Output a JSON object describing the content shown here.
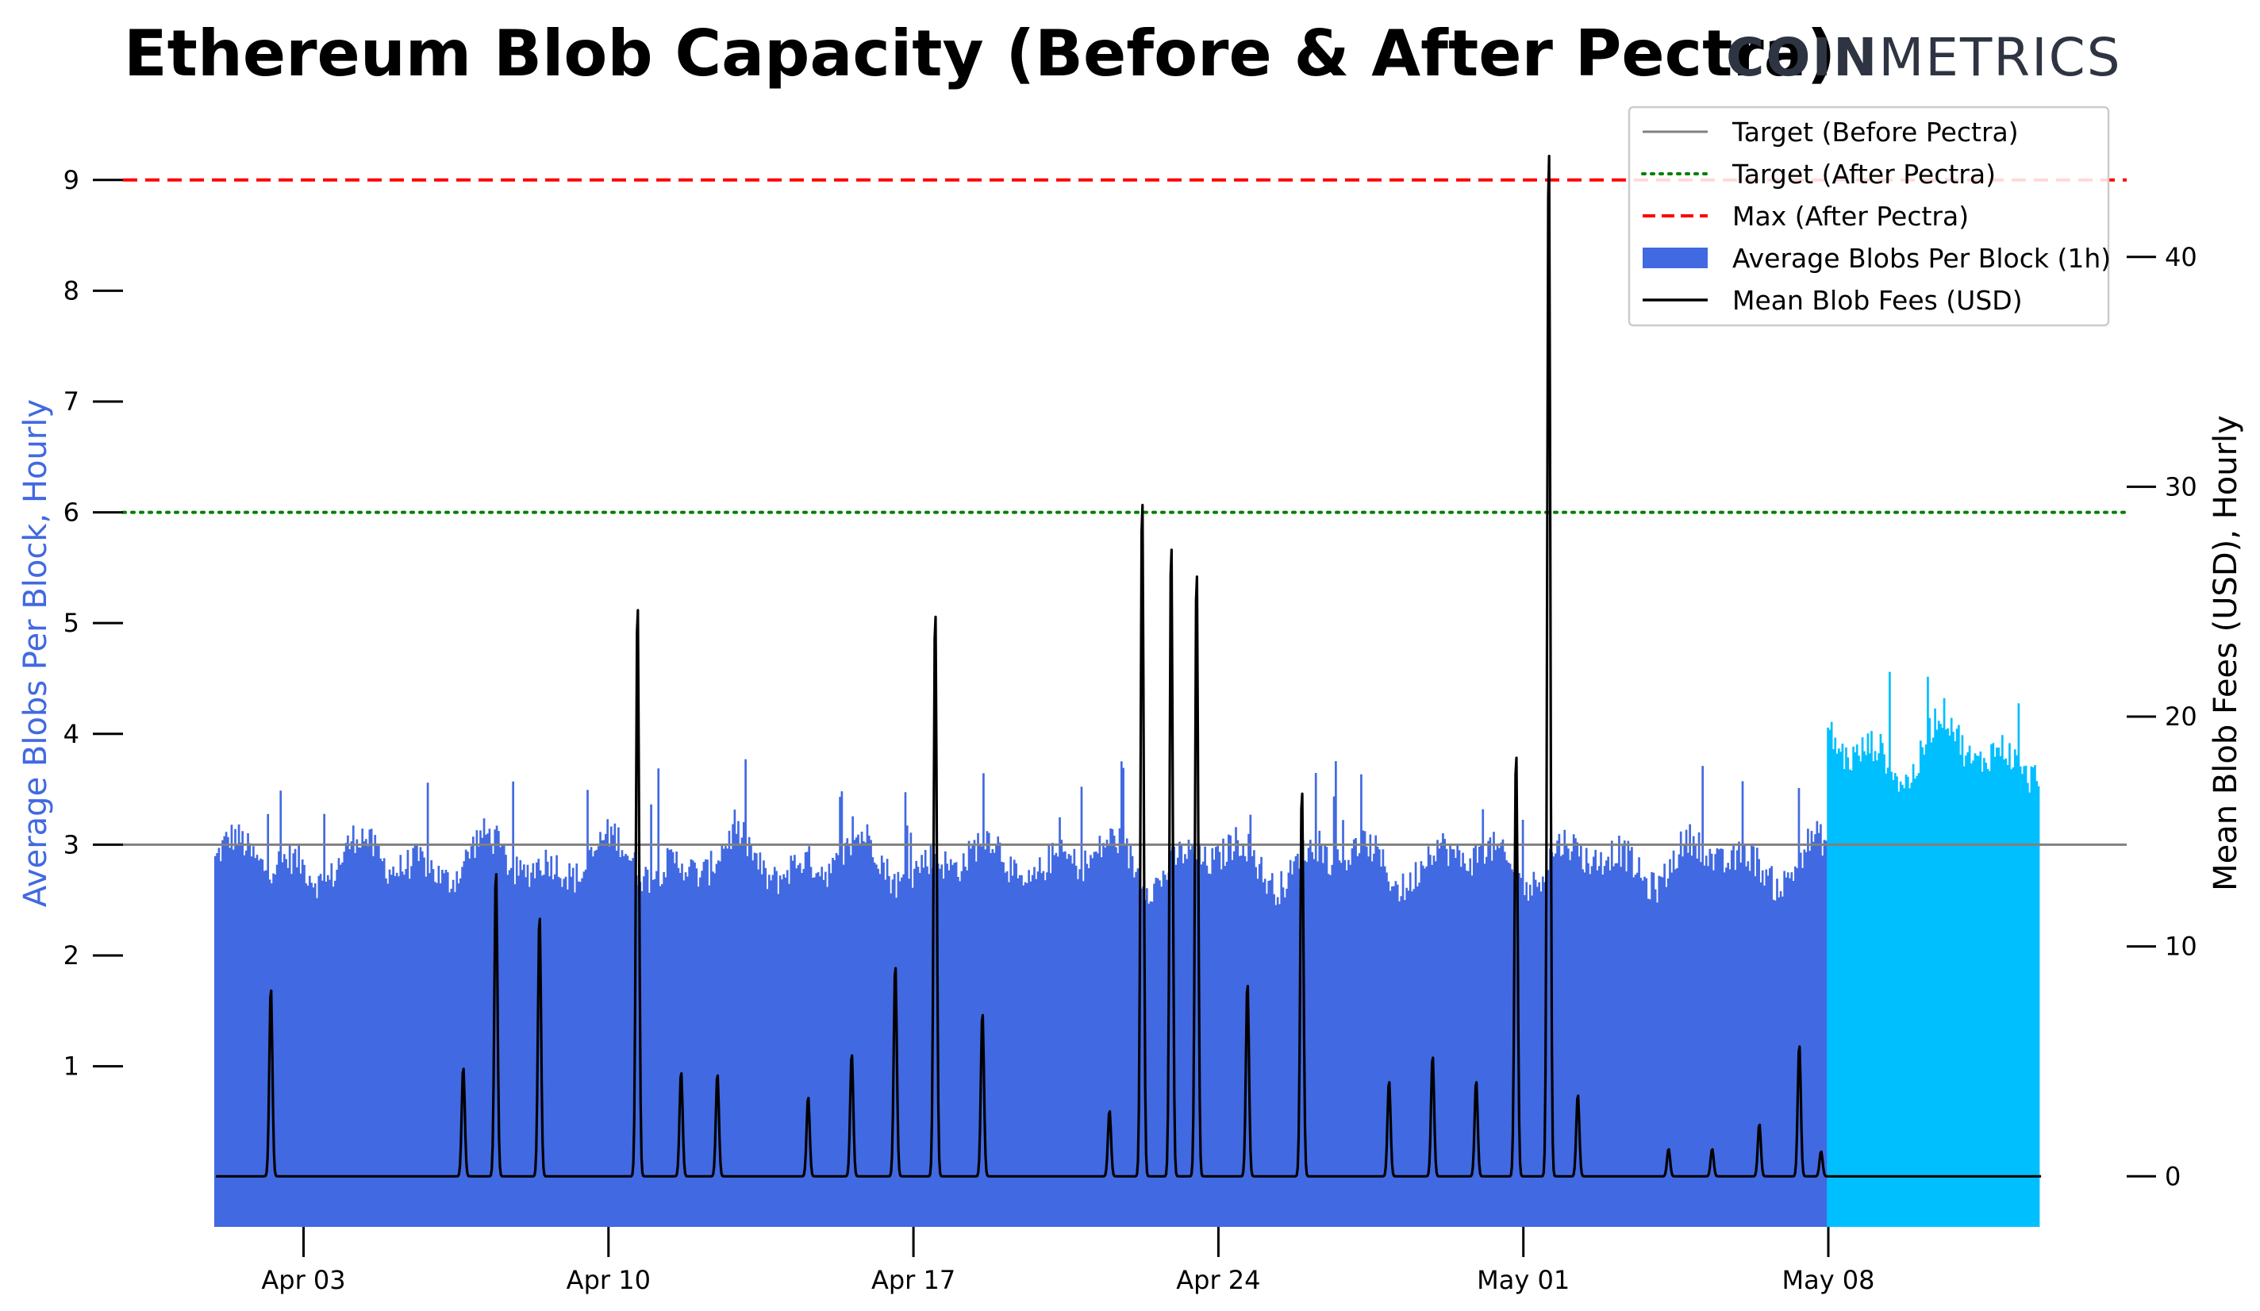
{
  "title": "Ethereum Blob Capacity (Before & After Pectra)",
  "logo": {
    "bold": "COIN",
    "thin": "METRICS"
  },
  "colors": {
    "before_bars": "#4169e1",
    "after_bars": "#00bfff",
    "target_before": "#808080",
    "target_after": "#008000",
    "max_after": "#ff0000",
    "fees_line": "#000000",
    "left_axis_label": "#4169e1"
  },
  "legend": {
    "placement": "top-right",
    "items": [
      {
        "label": "Target (Before Pectra)",
        "style": "solid-gray"
      },
      {
        "label": "Target (After Pectra)",
        "style": "dotted-green"
      },
      {
        "label": "Max (After Pectra)",
        "style": "dashed-red"
      },
      {
        "label": "Average Blobs Per Block (1h)",
        "style": "patch-blue"
      },
      {
        "label": "Mean Blob Fees (USD)",
        "style": "solid-black"
      }
    ]
  },
  "chart_data": {
    "type": "bar",
    "title": "Ethereum Blob Capacity (Before & After Pectra)",
    "grid": false,
    "x_axis": {
      "start_date": "2025-03-31",
      "end_date": "2025-05-13",
      "ticks": [
        "Apr 03",
        "Apr 10",
        "Apr 17",
        "Apr 24",
        "May 01",
        "May 08"
      ]
    },
    "y_left": {
      "label": "Average Blobs Per Block, Hourly",
      "range": [
        -0.45,
        9.55
      ],
      "ticks": [
        "1",
        "2",
        "3",
        "4",
        "5",
        "6",
        "7",
        "8",
        "9"
      ]
    },
    "y_right": {
      "label": "Mean Blob Fees (USD), Hourly",
      "range": [
        -2.2,
        46
      ],
      "ticks": [
        "0",
        "10",
        "20",
        "30",
        "40"
      ]
    },
    "reference_lines": [
      {
        "name": "Target (Before Pectra)",
        "value": 3
      },
      {
        "name": "Target (After Pectra)",
        "value": 6
      },
      {
        "name": "Max (After Pectra)",
        "value": 9
      }
    ],
    "series": [
      {
        "name": "Average Blobs Per Block (1h)",
        "kind": "bar",
        "pectra_activation": "2025-05-07T22:00",
        "hourly_values": {
          "before_pectra_typical": [
            2.6,
            3.1
          ],
          "before_pectra_peak": 3.8,
          "after_pectra_typical": [
            3.5,
            4.2
          ],
          "after_pectra_peak": 4.7
        }
      },
      {
        "name": "Mean Blob Fees (USD)",
        "kind": "line",
        "baseline": 0,
        "spikes": [
          {
            "date": "2025-04-02T06:00",
            "value": 8.3
          },
          {
            "date": "2025-04-06T16:00",
            "value": 4.8
          },
          {
            "date": "2025-04-07T10:00",
            "value": 13.5
          },
          {
            "date": "2025-04-08T10:00",
            "value": 11.5
          },
          {
            "date": "2025-04-10T16:00",
            "value": 25.3
          },
          {
            "date": "2025-04-11T16:00",
            "value": 4.6
          },
          {
            "date": "2025-04-12T12:00",
            "value": 4.5
          },
          {
            "date": "2025-04-14T14:00",
            "value": 3.5
          },
          {
            "date": "2025-04-15T14:00",
            "value": 5.4
          },
          {
            "date": "2025-04-16T14:00",
            "value": 9.3
          },
          {
            "date": "2025-04-17T12:00",
            "value": 25.0
          },
          {
            "date": "2025-04-18T14:00",
            "value": 7.2
          },
          {
            "date": "2025-04-21T12:00",
            "value": 2.9
          },
          {
            "date": "2025-04-22T06:00",
            "value": 30.0
          },
          {
            "date": "2025-04-22T22:00",
            "value": 28.0
          },
          {
            "date": "2025-04-23T12:00",
            "value": 26.8
          },
          {
            "date": "2025-04-24T16:00",
            "value": 8.5
          },
          {
            "date": "2025-04-25T22:00",
            "value": 17.1
          },
          {
            "date": "2025-04-27T22:00",
            "value": 4.2
          },
          {
            "date": "2025-04-28T22:00",
            "value": 5.3
          },
          {
            "date": "2025-04-29T22:00",
            "value": 4.2
          },
          {
            "date": "2025-04-30T20:00",
            "value": 18.7
          },
          {
            "date": "2025-05-01T14:00",
            "value": 45.6
          },
          {
            "date": "2025-05-02T06:00",
            "value": 3.6
          },
          {
            "date": "2025-05-04T08:00",
            "value": 1.2
          },
          {
            "date": "2025-05-05T08:00",
            "value": 1.2
          },
          {
            "date": "2025-05-06T10:00",
            "value": 2.3
          },
          {
            "date": "2025-05-07T08:00",
            "value": 5.8
          },
          {
            "date": "2025-05-07T20:00",
            "value": 1.1
          }
        ]
      }
    ]
  }
}
